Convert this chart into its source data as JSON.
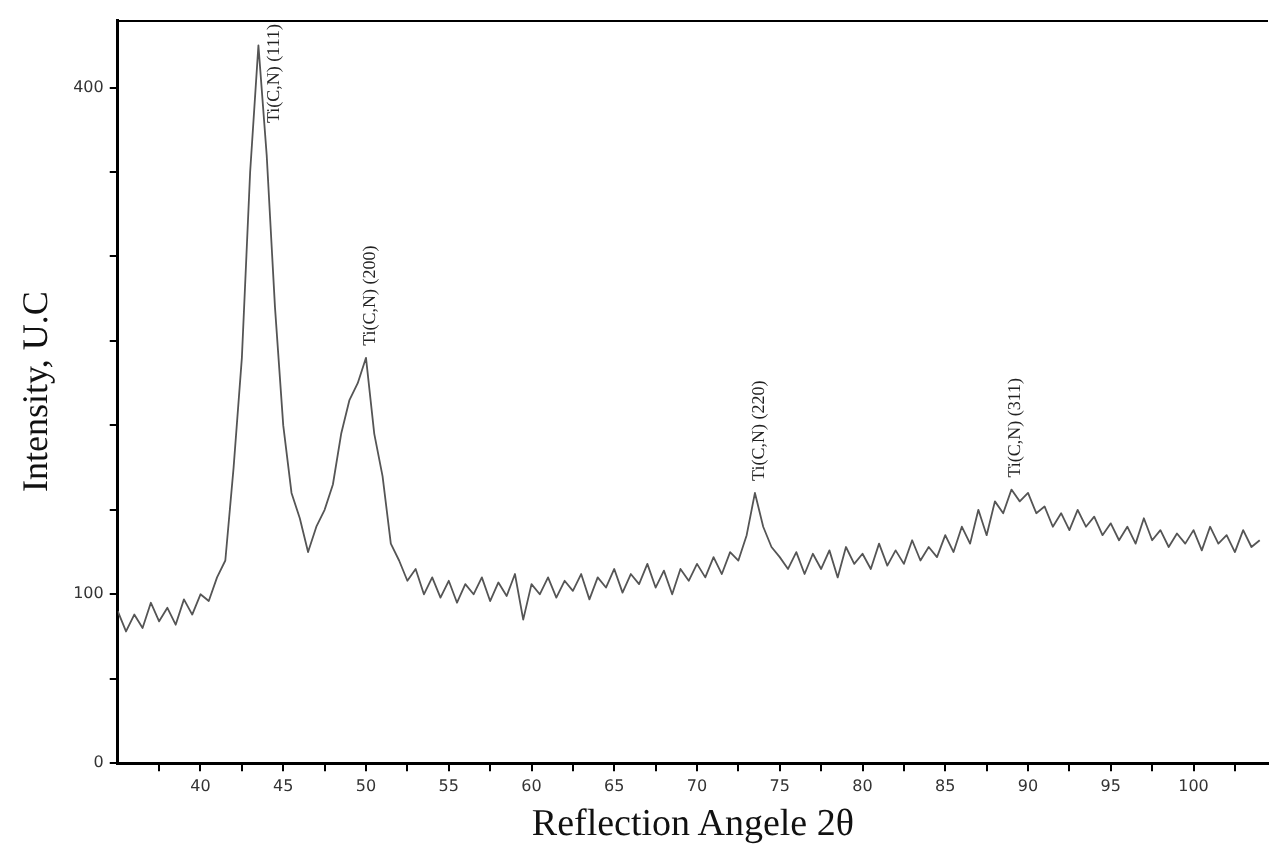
{
  "chart_data": {
    "type": "line",
    "xlabel": "Reflection Angele 2θ",
    "ylabel": "Intensity, U.C",
    "xlim": [
      35,
      104.5
    ],
    "ylim": [
      0,
      440
    ],
    "xticks": [
      {
        "value": 37.5,
        "label": null
      },
      40,
      {
        "value": 42.5,
        "label": null
      },
      45,
      {
        "value": 47.5,
        "label": null
      },
      50,
      {
        "value": 52.5,
        "label": null
      },
      55,
      {
        "value": 57.5,
        "label": null
      },
      60,
      {
        "value": 62.5,
        "label": null
      },
      65,
      {
        "value": 67.5,
        "label": null
      },
      70,
      {
        "value": 72.5,
        "label": null
      },
      75,
      {
        "value": 77.5,
        "label": null
      },
      80,
      {
        "value": 82.5,
        "label": null
      },
      85,
      {
        "value": 87.5,
        "label": null
      },
      90,
      {
        "value": 92.5,
        "label": null
      },
      95,
      {
        "value": 97.5,
        "label": null
      },
      100,
      {
        "value": 102.5,
        "label": null
      }
    ],
    "yticks": [
      0,
      {
        "value": 50,
        "label": null
      },
      100,
      {
        "value": 150,
        "label": null
      },
      {
        "value": 200,
        "label": null
      },
      {
        "value": 250,
        "label": null
      },
      {
        "value": 300,
        "label": null
      },
      {
        "value": 350,
        "label": null
      },
      400
    ],
    "grid": false,
    "legend": false,
    "marker": "none",
    "line_style": "solid",
    "annotations": [
      {
        "text": "Ti(C,N) (111)",
        "x": 43.5,
        "y": 425
      },
      {
        "text": "Ti(C,N) (200)",
        "x": 50,
        "y": 240
      },
      {
        "text": "Ti(C,N) (220)",
        "x": 73.5,
        "y": 160
      },
      {
        "text": "Ti(C,N) (311)",
        "x": 89,
        "y": 162
      }
    ],
    "x": [
      35,
      35.5,
      36,
      36.5,
      37,
      37.5,
      38,
      38.5,
      39,
      39.5,
      40,
      40.5,
      41,
      41.5,
      42,
      42.5,
      43,
      43.5,
      44,
      44.5,
      45,
      45.5,
      46,
      46.5,
      47,
      47.5,
      48,
      48.5,
      49,
      49.5,
      50,
      50.5,
      51,
      51.5,
      52,
      52.5,
      53,
      53.5,
      54,
      54.5,
      55,
      55.5,
      56,
      56.5,
      57,
      57.5,
      58,
      58.5,
      59,
      59.5,
      60,
      60.5,
      61,
      61.5,
      62,
      62.5,
      63,
      63.5,
      64,
      64.5,
      65,
      65.5,
      66,
      66.5,
      67,
      67.5,
      68,
      68.5,
      69,
      69.5,
      70,
      70.5,
      71,
      71.5,
      72,
      72.5,
      73,
      73.5,
      74,
      74.5,
      75,
      75.5,
      76,
      76.5,
      77,
      77.5,
      78,
      78.5,
      79,
      79.5,
      80,
      80.5,
      81,
      81.5,
      82,
      82.5,
      83,
      83.5,
      84,
      84.5,
      85,
      85.5,
      86,
      86.5,
      87,
      87.5,
      88,
      88.5,
      89,
      89.5,
      90,
      90.5,
      91,
      91.5,
      92,
      92.5,
      93,
      93.5,
      94,
      94.5,
      95,
      95.5,
      96,
      96.5,
      97,
      97.5,
      98,
      98.5,
      99,
      99.5,
      100,
      100.5,
      101,
      101.5,
      102,
      102.5,
      103,
      103.5,
      104
    ],
    "series": [
      {
        "color": "#555555",
        "values": [
          90,
          78,
          88,
          80,
          95,
          84,
          92,
          82,
          97,
          88,
          100,
          96,
          110,
          120,
          175,
          240,
          350,
          425,
          360,
          270,
          200,
          160,
          145,
          125,
          140,
          150,
          165,
          195,
          215,
          225,
          240,
          195,
          170,
          130,
          120,
          108,
          115,
          100,
          110,
          98,
          108,
          95,
          106,
          100,
          110,
          96,
          107,
          99,
          112,
          85,
          106,
          100,
          110,
          98,
          108,
          102,
          112,
          97,
          110,
          104,
          115,
          101,
          112,
          106,
          118,
          104,
          114,
          100,
          115,
          108,
          118,
          110,
          122,
          112,
          125,
          120,
          135,
          160,
          140,
          128,
          122,
          115,
          125,
          112,
          124,
          115,
          126,
          110,
          128,
          118,
          124,
          115,
          130,
          117,
          126,
          118,
          132,
          120,
          128,
          122,
          135,
          125,
          140,
          130,
          150,
          135,
          155,
          148,
          162,
          155,
          160,
          148,
          152,
          140,
          148,
          138,
          150,
          140,
          146,
          135,
          142,
          132,
          140,
          130,
          145,
          132,
          138,
          128,
          136,
          130,
          138,
          126,
          140,
          130,
          135,
          125,
          138,
          128,
          132
        ]
      }
    ]
  }
}
